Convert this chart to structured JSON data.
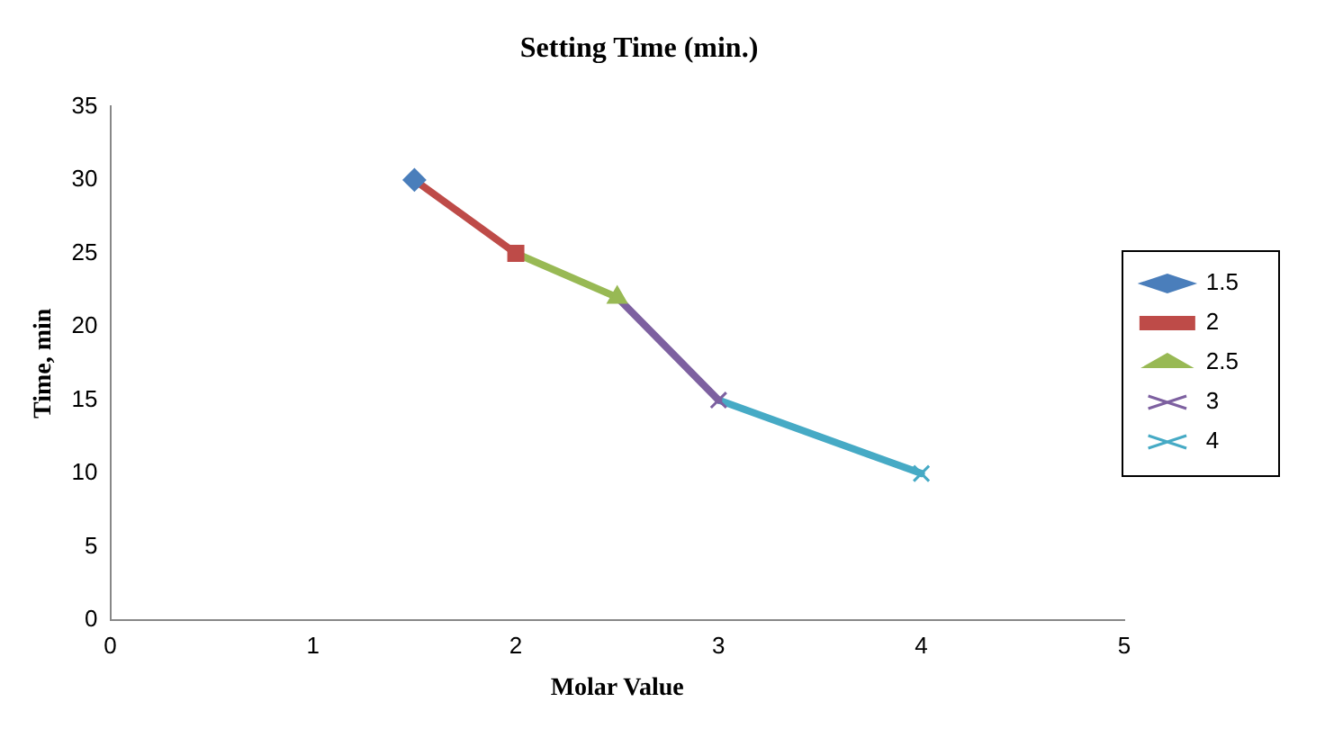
{
  "chart_data": {
    "type": "line",
    "title": "Setting Time (min.)",
    "xlabel": "Molar Value",
    "ylabel": "Time, min",
    "xlim": [
      0,
      5
    ],
    "xticks": [
      0,
      1,
      2,
      3,
      4,
      5
    ],
    "ylim": [
      0,
      35
    ],
    "yticks": [
      0,
      5,
      10,
      15,
      20,
      25,
      30,
      35
    ],
    "grid": false,
    "legend": "right",
    "series": [
      {
        "name": "1.5",
        "color": "#4a7ebb",
        "x": [
          1.5
        ],
        "values": [
          30
        ],
        "marker": "diamond"
      },
      {
        "name": "2",
        "color": "#be4b48",
        "x": [
          1.5,
          2
        ],
        "values": [
          30,
          25
        ],
        "marker": "square"
      },
      {
        "name": "2.5",
        "color": "#98b954",
        "x": [
          2,
          2.5
        ],
        "values": [
          25,
          22
        ],
        "marker": "triangle"
      },
      {
        "name": "3",
        "color": "#7d60a0",
        "x": [
          2.5,
          3
        ],
        "values": [
          22,
          15
        ],
        "marker": "cross"
      },
      {
        "name": "4",
        "color": "#46aac5",
        "x": [
          3,
          4
        ],
        "values": [
          15,
          10
        ],
        "marker": "cross"
      }
    ]
  }
}
